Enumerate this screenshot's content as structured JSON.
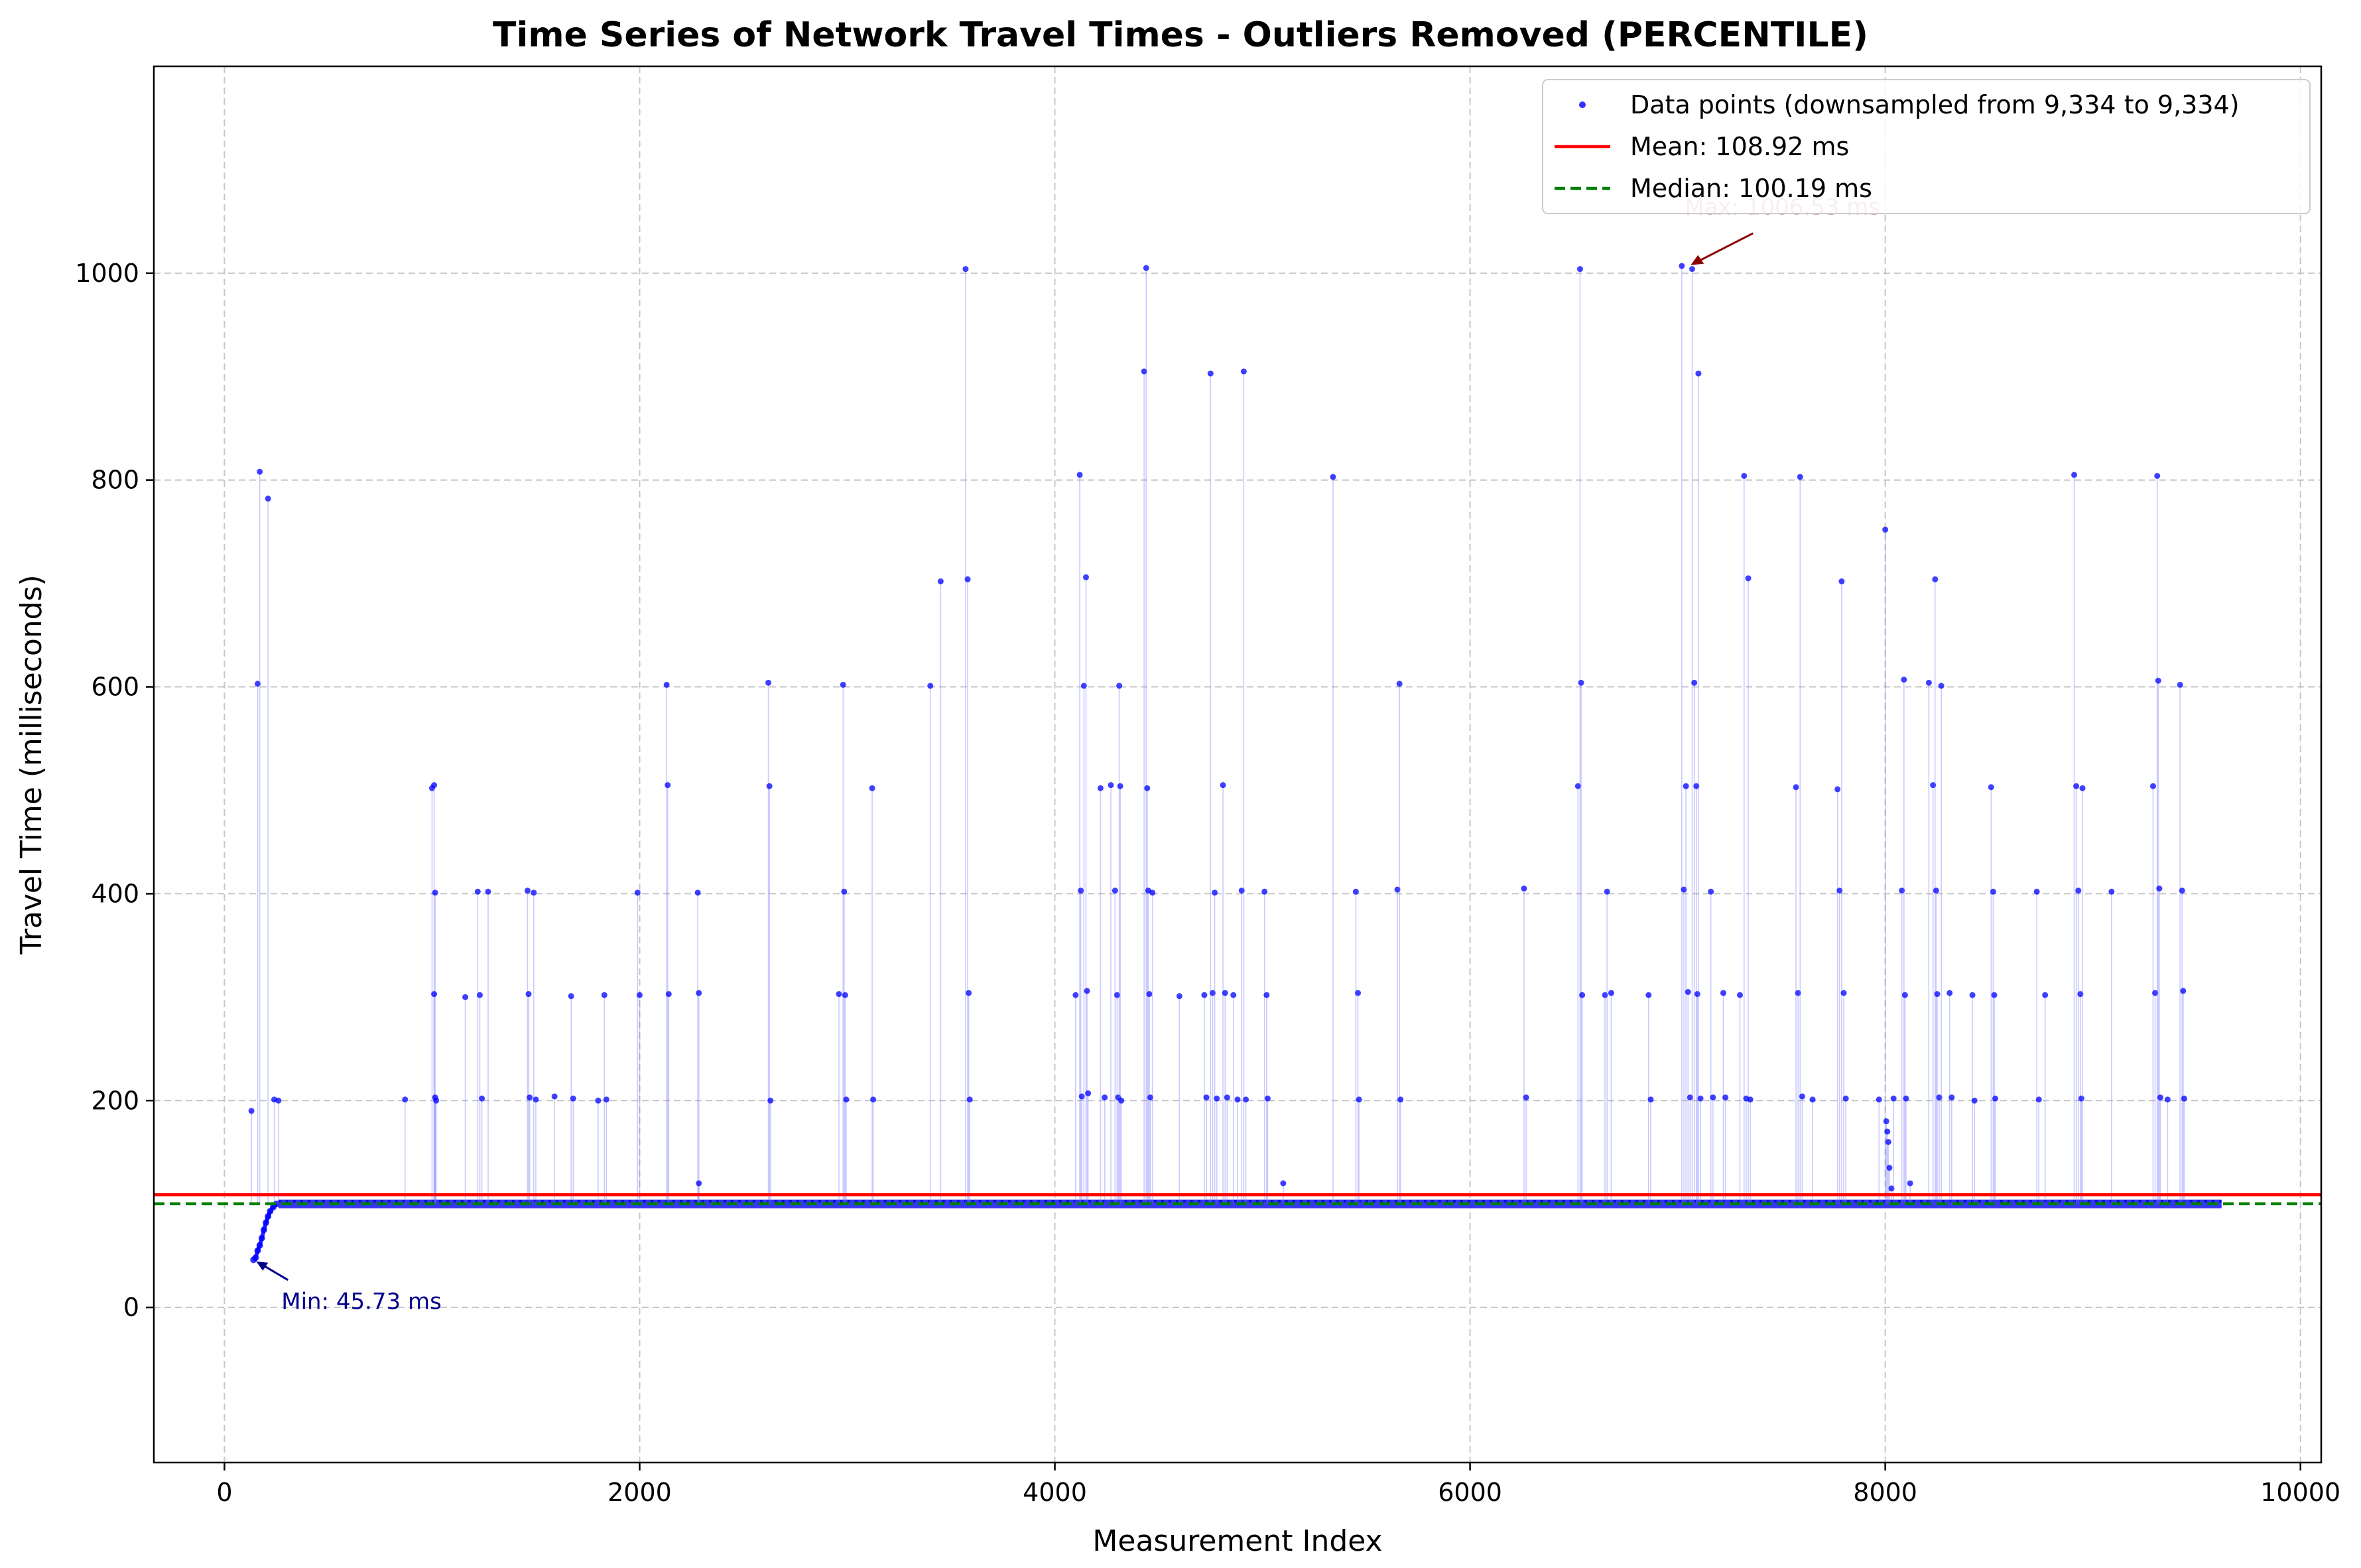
{
  "chart_data": {
    "type": "scatter",
    "title": "Time Series of Network Travel Times - Outliers Removed (PERCENTILE)",
    "xlabel": "Measurement Index",
    "ylabel": "Travel Time (milliseconds)",
    "xlim": [
      -340,
      10100
    ],
    "ylim": [
      -150,
      1200
    ],
    "xticks": [
      0,
      2000,
      4000,
      6000,
      8000,
      10000
    ],
    "yticks": [
      0,
      200,
      400,
      600,
      800,
      1000
    ],
    "grid": true,
    "legend_position": "top-right",
    "legend": [
      {
        "label": "Data points (downsampled from 9,334 to 9,334)",
        "kind": "marker",
        "color": "#0000ff"
      },
      {
        "label": "Mean: 108.92 ms",
        "kind": "line",
        "color": "#ff0000"
      },
      {
        "label": "Median: 100.19 ms",
        "kind": "dashed",
        "color": "#008000"
      }
    ],
    "mean": 108.92,
    "median": 100.19,
    "baseline": {
      "x_start": 260,
      "x_end": 9620,
      "y": 100
    },
    "warmup": [
      [
        140,
        46
      ],
      [
        150,
        48
      ],
      [
        160,
        55
      ],
      [
        170,
        60
      ],
      [
        180,
        67
      ],
      [
        190,
        75
      ],
      [
        200,
        82
      ],
      [
        210,
        88
      ],
      [
        220,
        93
      ],
      [
        235,
        97
      ],
      [
        250,
        100
      ]
    ],
    "spikes": [
      [
        130,
        190
      ],
      [
        160,
        603
      ],
      [
        170,
        808
      ],
      [
        210,
        782
      ],
      [
        240,
        201
      ],
      [
        260,
        200
      ],
      [
        870,
        201
      ],
      [
        1000,
        502
      ],
      [
        1010,
        505
      ],
      [
        1015,
        401
      ],
      [
        1010,
        303
      ],
      [
        1015,
        203
      ],
      [
        1020,
        200
      ],
      [
        1160,
        300
      ],
      [
        1220,
        402
      ],
      [
        1230,
        302
      ],
      [
        1240,
        202
      ],
      [
        1270,
        402
      ],
      [
        1460,
        403
      ],
      [
        1465,
        303
      ],
      [
        1470,
        203
      ],
      [
        1490,
        401
      ],
      [
        1500,
        201
      ],
      [
        1590,
        204
      ],
      [
        1670,
        301
      ],
      [
        1680,
        202
      ],
      [
        1800,
        200
      ],
      [
        1830,
        302
      ],
      [
        1840,
        201
      ],
      [
        1990,
        401
      ],
      [
        2000,
        302
      ],
      [
        2130,
        602
      ],
      [
        2135,
        505
      ],
      [
        2140,
        303
      ],
      [
        2280,
        401
      ],
      [
        2285,
        304
      ],
      [
        2285,
        120
      ],
      [
        2620,
        604
      ],
      [
        2625,
        504
      ],
      [
        2630,
        200
      ],
      [
        2960,
        303
      ],
      [
        2980,
        602
      ],
      [
        2985,
        402
      ],
      [
        2990,
        302
      ],
      [
        2995,
        201
      ],
      [
        3120,
        502
      ],
      [
        3125,
        201
      ],
      [
        3400,
        601
      ],
      [
        3450,
        702
      ],
      [
        3570,
        1004
      ],
      [
        3580,
        704
      ],
      [
        3585,
        304
      ],
      [
        3590,
        201
      ],
      [
        4100,
        302
      ],
      [
        4120,
        805
      ],
      [
        4125,
        403
      ],
      [
        4130,
        204
      ],
      [
        4140,
        601
      ],
      [
        4150,
        706
      ],
      [
        4155,
        306
      ],
      [
        4160,
        207
      ],
      [
        4220,
        502
      ],
      [
        4240,
        203
      ],
      [
        4270,
        505
      ],
      [
        4290,
        403
      ],
      [
        4300,
        302
      ],
      [
        4305,
        203
      ],
      [
        4310,
        601
      ],
      [
        4315,
        504
      ],
      [
        4320,
        200
      ],
      [
        4430,
        905
      ],
      [
        4440,
        1005
      ],
      [
        4445,
        502
      ],
      [
        4450,
        403
      ],
      [
        4455,
        303
      ],
      [
        4460,
        203
      ],
      [
        4470,
        401
      ],
      [
        4600,
        301
      ],
      [
        4720,
        302
      ],
      [
        4730,
        203
      ],
      [
        4750,
        903
      ],
      [
        4760,
        304
      ],
      [
        4770,
        401
      ],
      [
        4780,
        202
      ],
      [
        4810,
        505
      ],
      [
        4820,
        304
      ],
      [
        4830,
        203
      ],
      [
        4860,
        302
      ],
      [
        4880,
        201
      ],
      [
        4900,
        403
      ],
      [
        4910,
        905
      ],
      [
        4920,
        201
      ],
      [
        5010,
        402
      ],
      [
        5020,
        302
      ],
      [
        5025,
        202
      ],
      [
        5100,
        120
      ],
      [
        5340,
        803
      ],
      [
        5450,
        402
      ],
      [
        5460,
        304
      ],
      [
        5465,
        201
      ],
      [
        5650,
        404
      ],
      [
        5660,
        603
      ],
      [
        5665,
        201
      ],
      [
        6260,
        405
      ],
      [
        6270,
        203
      ],
      [
        6520,
        504
      ],
      [
        6530,
        1004
      ],
      [
        6535,
        604
      ],
      [
        6540,
        302
      ],
      [
        6650,
        302
      ],
      [
        6660,
        402
      ],
      [
        6680,
        304
      ],
      [
        6860,
        302
      ],
      [
        6870,
        201
      ],
      [
        7020,
        1007
      ],
      [
        7030,
        404
      ],
      [
        7040,
        504
      ],
      [
        7050,
        305
      ],
      [
        7060,
        203
      ],
      [
        7070,
        1004
      ],
      [
        7080,
        604
      ],
      [
        7090,
        504
      ],
      [
        7095,
        303
      ],
      [
        7100,
        903
      ],
      [
        7110,
        202
      ],
      [
        7160,
        402
      ],
      [
        7170,
        203
      ],
      [
        7220,
        304
      ],
      [
        7230,
        203
      ],
      [
        7300,
        302
      ],
      [
        7320,
        804
      ],
      [
        7330,
        202
      ],
      [
        7340,
        705
      ],
      [
        7350,
        201
      ],
      [
        7570,
        503
      ],
      [
        7580,
        304
      ],
      [
        7590,
        803
      ],
      [
        7600,
        204
      ],
      [
        7650,
        201
      ],
      [
        7770,
        501
      ],
      [
        7780,
        403
      ],
      [
        7790,
        702
      ],
      [
        7800,
        304
      ],
      [
        7810,
        202
      ],
      [
        7970,
        201
      ],
      [
        8000,
        752
      ],
      [
        8005,
        180
      ],
      [
        8010,
        170
      ],
      [
        8015,
        160
      ],
      [
        8020,
        135
      ],
      [
        8030,
        115
      ],
      [
        8040,
        202
      ],
      [
        8080,
        403
      ],
      [
        8090,
        607
      ],
      [
        8095,
        302
      ],
      [
        8100,
        202
      ],
      [
        8120,
        120
      ],
      [
        8210,
        604
      ],
      [
        8230,
        505
      ],
      [
        8240,
        704
      ],
      [
        8245,
        403
      ],
      [
        8250,
        303
      ],
      [
        8260,
        203
      ],
      [
        8270,
        601
      ],
      [
        8310,
        304
      ],
      [
        8320,
        203
      ],
      [
        8420,
        302
      ],
      [
        8430,
        200
      ],
      [
        8510,
        503
      ],
      [
        8520,
        402
      ],
      [
        8525,
        302
      ],
      [
        8530,
        202
      ],
      [
        8730,
        402
      ],
      [
        8740,
        201
      ],
      [
        8770,
        302
      ],
      [
        8910,
        805
      ],
      [
        8920,
        504
      ],
      [
        8930,
        403
      ],
      [
        8940,
        303
      ],
      [
        8945,
        202
      ],
      [
        8950,
        502
      ],
      [
        9090,
        402
      ],
      [
        9290,
        504
      ],
      [
        9300,
        304
      ],
      [
        9310,
        804
      ],
      [
        9315,
        606
      ],
      [
        9320,
        405
      ],
      [
        9325,
        203
      ],
      [
        9360,
        201
      ],
      [
        9420,
        602
      ],
      [
        9430,
        403
      ],
      [
        9435,
        306
      ],
      [
        9440,
        202
      ]
    ],
    "annotations": [
      {
        "text": "Min: 45.73 ms",
        "point": [
          140,
          45.73
        ],
        "text_pos": [
          140,
          5
        ],
        "color": "#00008b"
      },
      {
        "text": "Max: 1006.53 ms",
        "point": [
          7050,
          1006.53
        ],
        "text_pos": [
          7050,
          1045
        ],
        "color": "#d4a5a5"
      }
    ]
  }
}
